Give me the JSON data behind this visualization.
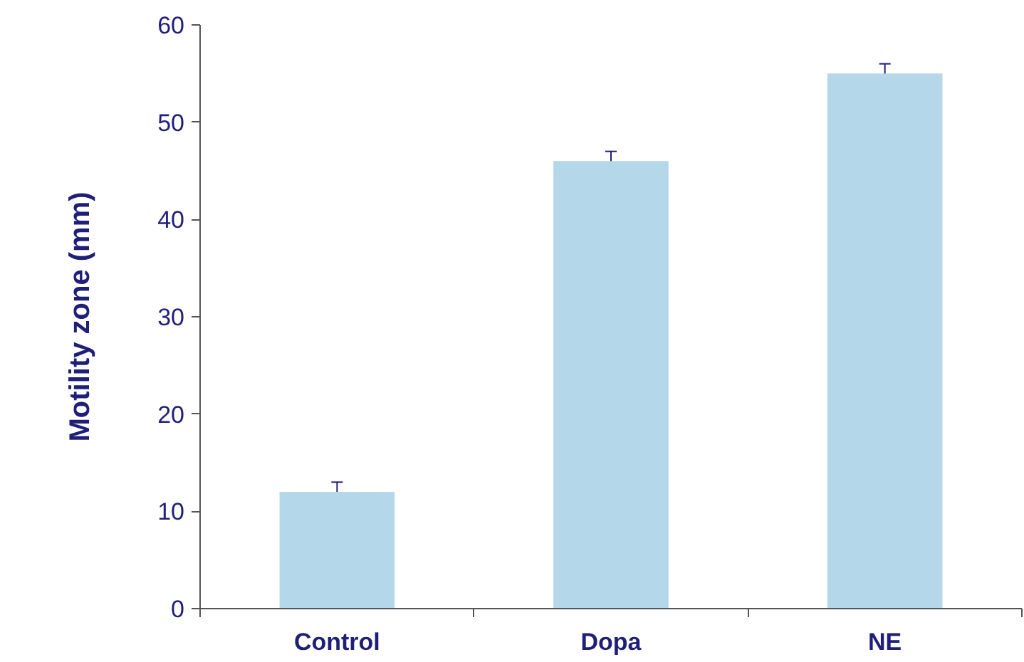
{
  "chart_data": {
    "type": "bar",
    "ylabel": "Motility zone (mm)",
    "categories": [
      "Control",
      "Dopa",
      "NE"
    ],
    "values": [
      12,
      46,
      55
    ],
    "errors": [
      1,
      1,
      1
    ],
    "color": "#b4d7ea",
    "ylim": [
      0,
      60
    ],
    "yticks": [
      0,
      10,
      20,
      30,
      40,
      50,
      60
    ],
    "grid": false
  }
}
